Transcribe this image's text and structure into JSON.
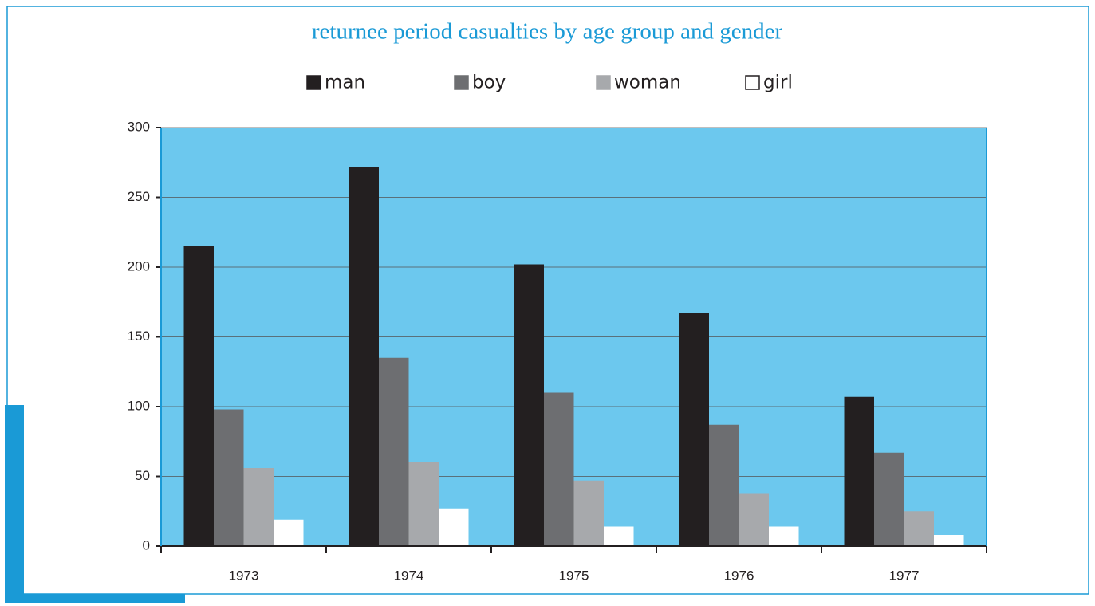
{
  "chart_data": {
    "type": "bar",
    "title": "returnee period casualties by age group and gender",
    "categories": [
      "1973",
      "1974",
      "1975",
      "1976",
      "1977"
    ],
    "series": [
      {
        "name": "man",
        "color": "#231f20",
        "values": [
          215,
          272,
          202,
          167,
          107
        ]
      },
      {
        "name": "boy",
        "color": "#6d6e71",
        "values": [
          98,
          135,
          110,
          87,
          67
        ]
      },
      {
        "name": "woman",
        "color": "#a7a9ac",
        "values": [
          56,
          60,
          47,
          38,
          25
        ]
      },
      {
        "name": "girl",
        "color": "#ffffff",
        "values": [
          19,
          27,
          14,
          14,
          8
        ]
      }
    ],
    "ylim": [
      0,
      300
    ],
    "yticks": [
      0,
      50,
      100,
      150,
      200,
      250,
      300
    ],
    "grid": true,
    "legend": "top",
    "plot_background": "#6cc8ee"
  }
}
